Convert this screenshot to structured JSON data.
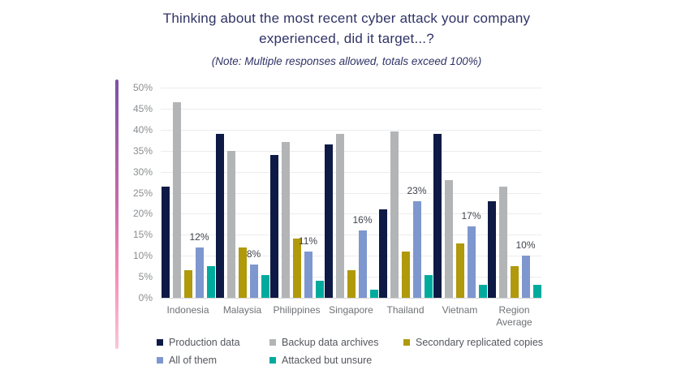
{
  "header": {
    "title_line1": "Thinking about the most recent cyber attack your company",
    "title_line2": "experienced, did it target...?",
    "note": "(Note: Multiple responses allowed, totals exceed 100%)"
  },
  "colors": {
    "title": "#2f3366",
    "tick_label": "#8b8e91",
    "x_label": "#6f7276",
    "data_label": "#40444c",
    "legend_text": "#54575e",
    "gridline": "#ececed",
    "axis_line": "#d4d5d6",
    "accent_top": "#7b52a6",
    "accent_mid": "#c76bac",
    "accent_pink": "#f48cb6",
    "accent_bottom": "#fbc7d9"
  },
  "chart_data": {
    "type": "bar",
    "title": "Thinking about the most recent cyber attack your company experienced, did it target...?",
    "subtitle": "(Note: Multiple responses allowed, totals exceed 100%)",
    "categories": [
      "Indonesia",
      "Malaysia",
      "Philippines",
      "Singapore",
      "Thailand",
      "Vietnam",
      "Region Average"
    ],
    "series": [
      {
        "name": "Production data",
        "color": "#0e1a45",
        "values": [
          26.5,
          39,
          34,
          36.5,
          21,
          39,
          23
        ]
      },
      {
        "name": "Backup data archives",
        "color": "#b2b4b6",
        "values": [
          46.5,
          35,
          37,
          39,
          39.5,
          28,
          26.5
        ]
      },
      {
        "name": "Secondary replicated copies",
        "color": "#b0990b",
        "values": [
          6.5,
          12,
          14,
          6.5,
          11,
          13,
          7.5
        ]
      },
      {
        "name": "All of them",
        "color": "#7e97ce",
        "values": [
          12,
          8,
          11,
          16,
          23,
          17,
          10
        ]
      },
      {
        "name": "Attacked but unsure",
        "color": "#00ab9e",
        "values": [
          7.5,
          5.5,
          4,
          2,
          5.5,
          3,
          3
        ]
      }
    ],
    "data_labels": {
      "labeled_series": "All of them",
      "values": [
        "12%",
        "8%",
        "11%",
        "16%",
        "23%",
        "17%",
        "10%"
      ]
    },
    "ylim": [
      0,
      50
    ],
    "ytick_step": 5,
    "yticks": [
      "50%",
      "45%",
      "40%",
      "35%",
      "30%",
      "25%",
      "20%",
      "15%",
      "10%",
      "5%",
      "0%"
    ],
    "grid": true,
    "legend_position": "bottom",
    "legend_rows": [
      [
        0,
        1,
        2
      ],
      [
        3,
        4
      ]
    ]
  }
}
